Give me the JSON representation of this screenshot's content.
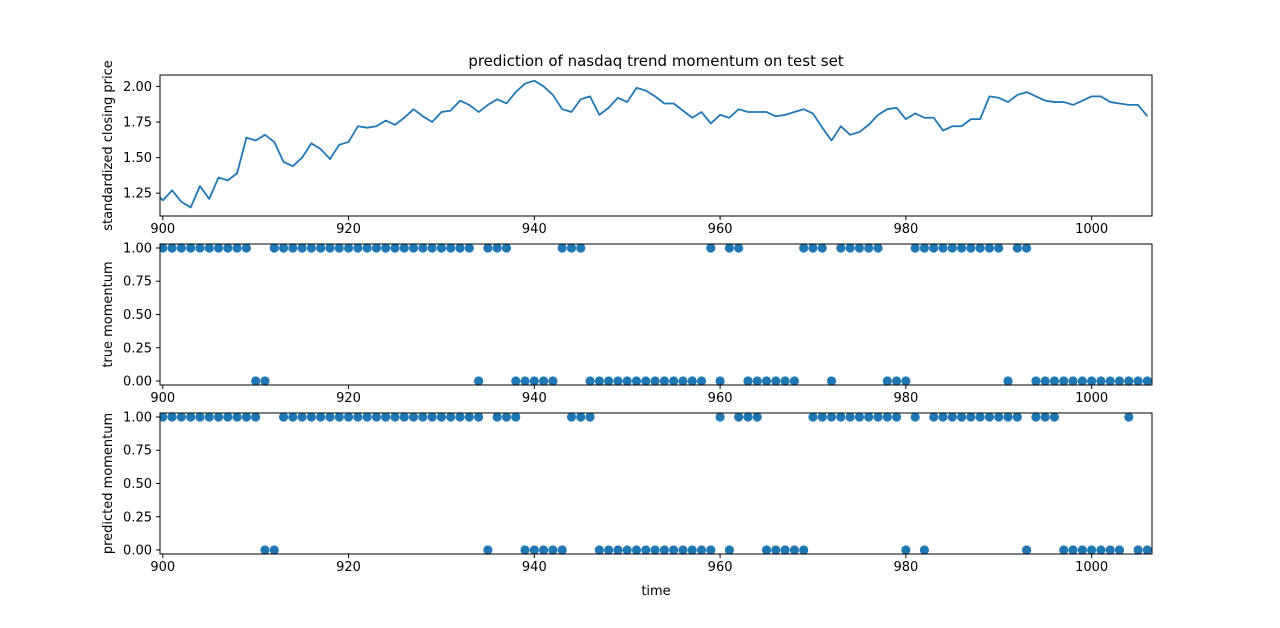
{
  "chart_data": [
    {
      "type": "line",
      "title": "prediction of nasdaq trend momentum on test set",
      "xlabel": "",
      "ylabel": "standardized closing price",
      "xlim": [
        899.7,
        1006.5
      ],
      "ylim": [
        1.09,
        2.08
      ],
      "xticks": [
        900,
        920,
        940,
        960,
        980,
        1000
      ],
      "yticks": [
        1.25,
        1.5,
        1.75,
        2.0
      ],
      "ytick_labels": [
        "1.25",
        "1.50",
        "1.75",
        "2.00"
      ],
      "color": "#1f77b4",
      "grid": false,
      "x_start": 899,
      "y": [
        1.27,
        1.2,
        1.27,
        1.19,
        1.15,
        1.3,
        1.21,
        1.36,
        1.34,
        1.39,
        1.64,
        1.62,
        1.66,
        1.61,
        1.47,
        1.44,
        1.5,
        1.6,
        1.56,
        1.49,
        1.59,
        1.61,
        1.72,
        1.71,
        1.72,
        1.76,
        1.73,
        1.78,
        1.84,
        1.79,
        1.75,
        1.82,
        1.83,
        1.9,
        1.87,
        1.82,
        1.87,
        1.91,
        1.88,
        1.96,
        2.02,
        2.04,
        2.0,
        1.94,
        1.84,
        1.82,
        1.91,
        1.93,
        1.8,
        1.85,
        1.92,
        1.89,
        1.99,
        1.97,
        1.93,
        1.88,
        1.88,
        1.83,
        1.78,
        1.82,
        1.74,
        1.8,
        1.78,
        1.84,
        1.82,
        1.82,
        1.82,
        1.79,
        1.8,
        1.82,
        1.84,
        1.81,
        1.71,
        1.62,
        1.72,
        1.66,
        1.68,
        1.73,
        1.8,
        1.84,
        1.85,
        1.77,
        1.81,
        1.78,
        1.78,
        1.69,
        1.72,
        1.72,
        1.77,
        1.77,
        1.93,
        1.92,
        1.89,
        1.94,
        1.96,
        1.93,
        1.9,
        1.89,
        1.89,
        1.87,
        1.9,
        1.93,
        1.93,
        1.89,
        1.88,
        1.87,
        1.87,
        1.79
      ]
    },
    {
      "type": "scatter",
      "title": "",
      "xlabel": "",
      "ylabel": "true momentum",
      "xlim": [
        899.7,
        1006.5
      ],
      "ylim": [
        -0.03,
        1.03
      ],
      "xticks": [
        900,
        920,
        940,
        960,
        980,
        1000
      ],
      "yticks": [
        0,
        0.25,
        0.5,
        0.75,
        1.0
      ],
      "ytick_labels": [
        "0.00",
        "0.25",
        "0.50",
        "0.75",
        "1.00"
      ],
      "color": "#1f77b4",
      "grid": false,
      "x_start": 900,
      "y": [
        1,
        1,
        1,
        1,
        1,
        1,
        1,
        1,
        1,
        1,
        0,
        0,
        1,
        1,
        1,
        1,
        1,
        1,
        1,
        1,
        1,
        1,
        1,
        1,
        1,
        1,
        1,
        1,
        1,
        1,
        1,
        1,
        1,
        1,
        0,
        1,
        1,
        1,
        0,
        0,
        0,
        0,
        0,
        1,
        1,
        1,
        0,
        0,
        0,
        0,
        0,
        0,
        0,
        0,
        0,
        0,
        0,
        0,
        0,
        1,
        0,
        1,
        1,
        0,
        0,
        0,
        0,
        0,
        0,
        1,
        1,
        1,
        0,
        1,
        1,
        1,
        1,
        1,
        0,
        0,
        0,
        1,
        1,
        1,
        1,
        1,
        1,
        1,
        1,
        1,
        1,
        0,
        1,
        1,
        0,
        0,
        0,
        0,
        0,
        0,
        0,
        0,
        0,
        0,
        0,
        0,
        0
      ]
    },
    {
      "type": "scatter",
      "title": "",
      "xlabel": "time",
      "ylabel": "predicted momentum",
      "xlim": [
        899.7,
        1006.5
      ],
      "ylim": [
        -0.03,
        1.03
      ],
      "xticks": [
        900,
        920,
        940,
        960,
        980,
        1000
      ],
      "yticks": [
        0,
        0.25,
        0.5,
        0.75,
        1.0
      ],
      "ytick_labels": [
        "0.00",
        "0.25",
        "0.50",
        "0.75",
        "1.00"
      ],
      "color": "#1f77b4",
      "grid": false,
      "x_start": 900,
      "y": [
        1,
        1,
        1,
        1,
        1,
        1,
        1,
        1,
        1,
        1,
        1,
        0,
        0,
        1,
        1,
        1,
        1,
        1,
        1,
        1,
        1,
        1,
        1,
        1,
        1,
        1,
        1,
        1,
        1,
        1,
        1,
        1,
        1,
        1,
        1,
        0,
        1,
        1,
        1,
        0,
        0,
        0,
        0,
        0,
        1,
        1,
        1,
        0,
        0,
        0,
        0,
        0,
        0,
        0,
        0,
        0,
        0,
        0,
        0,
        0,
        1,
        0,
        1,
        1,
        1,
        0,
        0,
        0,
        0,
        0,
        1,
        1,
        1,
        1,
        1,
        1,
        1,
        1,
        1,
        1,
        0,
        1,
        0,
        1,
        1,
        1,
        1,
        1,
        1,
        1,
        1,
        1,
        1,
        0,
        1,
        1,
        1,
        0,
        0,
        0,
        0,
        0,
        0,
        0,
        1,
        0,
        0,
        0
      ]
    }
  ]
}
